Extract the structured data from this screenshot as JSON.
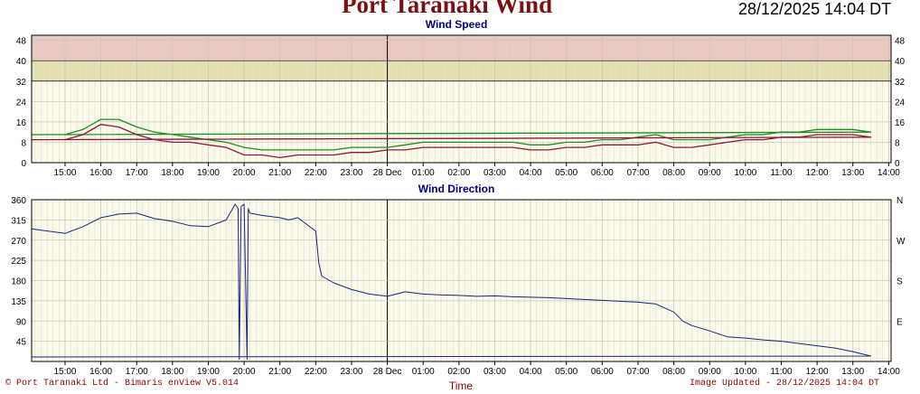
{
  "title": "Port Taranaki Wind",
  "timestamp": "28/12/2025 14:04 DT",
  "footer_left": "© Port Taranaki Ltd - Bimaris enView V5.014",
  "footer_right": "Image Updated - 28/12/2025 14:04 DT",
  "chart_data": [
    {
      "type": "line",
      "title": "Wind Speed",
      "xlabel": "",
      "ylabel": "",
      "time_ticks": [
        "15:00",
        "16:00",
        "17:00",
        "18:00",
        "19:00",
        "20:00",
        "21:00",
        "22:00",
        "23:00",
        "28 Dec",
        "01:00",
        "02:00",
        "03:00",
        "04:00",
        "05:00",
        "06:00",
        "07:00",
        "08:00",
        "09:00",
        "10:00",
        "11:00",
        "12:00",
        "13:00",
        "14:00"
      ],
      "x_range": [
        "27/12/2025 14:04",
        "28/12/2025 14:04"
      ],
      "y_ticks": [
        0,
        8,
        16,
        24,
        32,
        40,
        48
      ],
      "ylim": [
        0,
        50
      ],
      "bands": [
        {
          "from": 32,
          "to": 40,
          "color": "#e6e0b2"
        },
        {
          "from": 40,
          "to": 50,
          "color": "#e8c8c0"
        }
      ],
      "grid": true,
      "x": [
        "14:04",
        "15:00",
        "15:30",
        "16:00",
        "16:30",
        "17:00",
        "17:30",
        "18:00",
        "18:30",
        "19:00",
        "19:30",
        "20:00",
        "20:30",
        "21:00",
        "21:30",
        "22:00",
        "22:30",
        "23:00",
        "23:30",
        "00:00",
        "00:30",
        "01:00",
        "01:30",
        "02:00",
        "02:30",
        "03:00",
        "03:30",
        "04:00",
        "04:30",
        "05:00",
        "05:30",
        "06:00",
        "06:30",
        "07:00",
        "07:30",
        "08:00",
        "08:30",
        "09:00",
        "09:30",
        "10:00",
        "10:30",
        "11:00",
        "11:30",
        "12:00",
        "12:30",
        "13:00",
        "13:30",
        "14:04"
      ],
      "series": [
        {
          "color": "#228b22",
          "values": [
            11,
            11,
            13,
            17,
            17,
            14,
            12,
            11,
            10,
            9,
            8,
            6,
            5,
            5,
            5,
            5,
            5,
            6,
            6,
            6,
            7,
            8,
            8,
            8,
            8,
            8,
            8,
            7,
            7,
            8,
            8,
            9,
            9,
            10,
            11,
            9,
            9,
            9,
            10,
            11,
            11,
            12,
            12,
            13,
            13,
            13,
            12,
            11
          ]
        },
        {
          "color": "#8b1a3a",
          "values": [
            9,
            9,
            11,
            15,
            14,
            11,
            9,
            8,
            8,
            7,
            6,
            3,
            3,
            2,
            3,
            3,
            3,
            4,
            4,
            5,
            5,
            6,
            6,
            6,
            6,
            6,
            6,
            5,
            5,
            6,
            6,
            7,
            7,
            7,
            8,
            6,
            6,
            7,
            8,
            9,
            9,
            10,
            10,
            11,
            11,
            11,
            10,
            9
          ]
        }
      ]
    },
    {
      "type": "line",
      "title": "Wind Direction",
      "xlabel": "Time",
      "ylabel": "",
      "time_ticks": [
        "15:00",
        "16:00",
        "17:00",
        "18:00",
        "19:00",
        "20:00",
        "21:00",
        "22:00",
        "23:00",
        "28 Dec",
        "01:00",
        "02:00",
        "03:00",
        "04:00",
        "05:00",
        "06:00",
        "07:00",
        "08:00",
        "09:00",
        "10:00",
        "11:00",
        "12:00",
        "13:00",
        "14:00"
      ],
      "x_range": [
        "27/12/2025 14:04",
        "28/12/2025 14:04"
      ],
      "y_ticks": [
        45,
        90,
        135,
        180,
        225,
        270,
        315,
        360
      ],
      "compass_labels": [
        {
          "label": "E",
          "value": 90
        },
        {
          "label": "S",
          "value": 180
        },
        {
          "label": "W",
          "value": 270
        },
        {
          "label": "N",
          "value": 360
        }
      ],
      "ylim": [
        0,
        360
      ],
      "grid": true,
      "x": [
        "14:04",
        "15:00",
        "15:30",
        "16:00",
        "16:30",
        "17:00",
        "17:30",
        "18:00",
        "18:30",
        "19:00",
        "19:30",
        "19:45",
        "19:50",
        "19:52",
        "19:55",
        "20:00",
        "20:05",
        "20:07",
        "20:10",
        "20:30",
        "21:00",
        "21:15",
        "21:30",
        "22:00",
        "22:05",
        "22:10",
        "22:30",
        "23:00",
        "23:30",
        "00:00",
        "00:30",
        "01:00",
        "01:30",
        "02:00",
        "02:30",
        "03:00",
        "03:30",
        "04:00",
        "04:30",
        "05:00",
        "05:30",
        "06:00",
        "06:30",
        "07:00",
        "07:30",
        "08:00",
        "08:15",
        "08:30",
        "09:00",
        "09:30",
        "10:00",
        "10:30",
        "11:00",
        "11:30",
        "12:00",
        "12:30",
        "13:00",
        "13:30",
        "14:04"
      ],
      "series": [
        {
          "color": "#1a237e",
          "values": [
            295,
            285,
            300,
            320,
            328,
            330,
            318,
            312,
            302,
            300,
            315,
            350,
            340,
            5,
            345,
            350,
            5,
            340,
            330,
            325,
            320,
            315,
            320,
            290,
            220,
            190,
            175,
            160,
            150,
            145,
            155,
            150,
            148,
            147,
            145,
            146,
            144,
            143,
            142,
            140,
            138,
            136,
            134,
            132,
            128,
            110,
            90,
            80,
            68,
            55,
            52,
            48,
            45,
            40,
            35,
            30,
            22,
            12,
            10
          ]
        }
      ]
    }
  ]
}
